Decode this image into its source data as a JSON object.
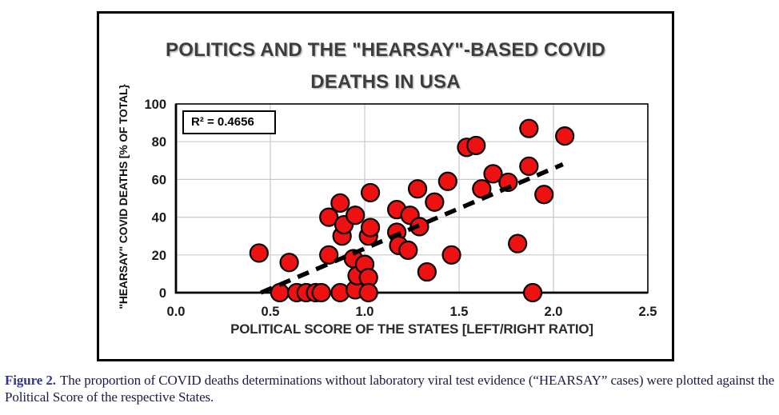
{
  "figure": {
    "title_line1": "POLITICS AND THE \"HEARSAY\"-BASED COVID",
    "title_line2": "DEATHS IN USA",
    "r2_label": "R² = 0.4656"
  },
  "chart_data": {
    "type": "scatter",
    "title": "POLITICS AND THE \"HEARSAY\"-BASED COVID DEATHS IN USA",
    "xlabel": "POLITICAL SCORE OF THE STATES [LEFT/RIGHT RATIO]",
    "ylabel": "\"HEARSAY\" COVID DEATHS [% OF TOTAL}",
    "xlim": [
      0,
      2.5
    ],
    "ylim": [
      0,
      100
    ],
    "grid": true,
    "annotation": "R² = 0.4656",
    "x_ticks": {
      "values": [
        0,
        0.5,
        1.0,
        1.5,
        2.0,
        2.5
      ],
      "labels": [
        "0.0",
        "0.5",
        "1.0",
        "1.5",
        "2.0",
        "2.5"
      ]
    },
    "y_ticks": {
      "values": [
        0,
        20,
        40,
        60,
        80,
        100
      ],
      "labels": [
        "0",
        "20",
        "40",
        "60",
        "80",
        "100"
      ]
    },
    "colors": {
      "grid": "#C9C9C9",
      "axis": "#000000",
      "marker_fill": "#EE1111",
      "marker_stroke": "#000000"
    },
    "marker": {
      "radius_px": 11,
      "stroke_width": 2.2
    },
    "points": [
      [
        0.44,
        21
      ],
      [
        0.55,
        0
      ],
      [
        0.6,
        16
      ],
      [
        0.64,
        0
      ],
      [
        0.69,
        0
      ],
      [
        0.74,
        0
      ],
      [
        0.77,
        0
      ],
      [
        0.81,
        40
      ],
      [
        0.81,
        20
      ],
      [
        0.87,
        47.5
      ],
      [
        0.87,
        0
      ],
      [
        0.88,
        30
      ],
      [
        0.89,
        36
      ],
      [
        0.94,
        18
      ],
      [
        0.95,
        41
      ],
      [
        0.95,
        1.5
      ],
      [
        0.96,
        9
      ],
      [
        1.0,
        15
      ],
      [
        1.02,
        30
      ],
      [
        1.02,
        8
      ],
      [
        1.02,
        0
      ],
      [
        1.03,
        53
      ],
      [
        1.03,
        34.5
      ],
      [
        1.17,
        44
      ],
      [
        1.17,
        32
      ],
      [
        1.18,
        25
      ],
      [
        1.23,
        22.5
      ],
      [
        1.24,
        41
      ],
      [
        1.28,
        55
      ],
      [
        1.29,
        35
      ],
      [
        1.33,
        11
      ],
      [
        1.37,
        48
      ],
      [
        1.44,
        59
      ],
      [
        1.46,
        20
      ],
      [
        1.54,
        77
      ],
      [
        1.59,
        78
      ],
      [
        1.62,
        55
      ],
      [
        1.68,
        63
      ],
      [
        1.76,
        58.5
      ],
      [
        1.81,
        26
      ],
      [
        1.87,
        87
      ],
      [
        1.87,
        67
      ],
      [
        1.89,
        0
      ],
      [
        1.95,
        52
      ],
      [
        2.06,
        83
      ]
    ],
    "trendline": {
      "style": "dashed",
      "color": "#000000",
      "x1": 0.45,
      "y1": 0,
      "x2": 2.05,
      "y2": 68
    }
  },
  "caption": {
    "label": "Figure 2.",
    "text": "The proportion of COVID deaths determinations without laboratory viral test evidence (“HEARSAY” cases) were plotted against the Political Score of the respective States."
  }
}
